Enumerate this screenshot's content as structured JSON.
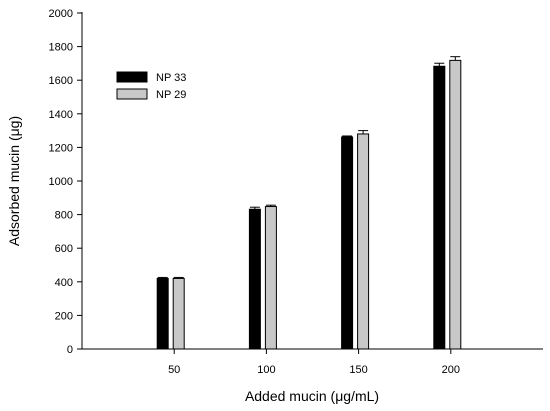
{
  "chart_data": {
    "type": "bar",
    "title": "",
    "xlabel": "Added mucin (μg/mL)",
    "ylabel": "Adsorbed mucin (μg)",
    "categories": [
      "50",
      "100",
      "150",
      "200"
    ],
    "x_range": [
      0,
      250
    ],
    "ylim": [
      0,
      2000
    ],
    "y_ticks": [
      "0",
      "200",
      "400",
      "600",
      "800",
      "1000",
      "1200",
      "1400",
      "1600",
      "1800",
      "2000"
    ],
    "grid": false,
    "legend_position": "top-left",
    "series": [
      {
        "name": "NP 33",
        "color": "#000000",
        "values": [
          420,
          832,
          1262,
          1683
        ],
        "errors": [
          6,
          12,
          6,
          18
        ]
      },
      {
        "name": "NP 29",
        "color": "#c8c8c8",
        "values": [
          420,
          848,
          1280,
          1718
        ],
        "errors": [
          6,
          8,
          20,
          22
        ]
      }
    ]
  }
}
